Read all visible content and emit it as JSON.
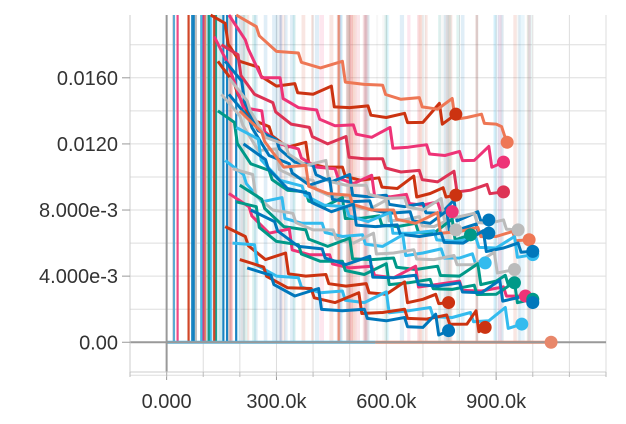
{
  "chart_data": {
    "type": "line",
    "title": "",
    "xlabel": "",
    "ylabel": "",
    "xlim": [
      -100000,
      1200000
    ],
    "ylim": [
      -0.0018,
      0.0198
    ],
    "grid": true,
    "legend": "none",
    "x_ticks": [
      {
        "value": 0,
        "label": "0.000"
      },
      {
        "value": 300000,
        "label": "300.0k"
      },
      {
        "value": 600000,
        "label": "600.0k"
      },
      {
        "value": 900000,
        "label": "900.0k"
      }
    ],
    "y_ticks": [
      {
        "value": 0,
        "label": "0.00"
      },
      {
        "value": 0.004,
        "label": "4.000e-3"
      },
      {
        "value": 0.008,
        "label": "8.000e-3"
      },
      {
        "value": 0.012,
        "label": "0.0120"
      },
      {
        "value": 0.016,
        "label": "0.0160"
      }
    ],
    "colors": {
      "axis": "#999999",
      "grid": "#dddddd",
      "baseline_run": "#4db6e6",
      "baseline_run_2": "#e8876a"
    },
    "series": [
      {
        "color": "#cc3311",
        "points": [
          [
            120000,
            0.0198
          ],
          [
            200000,
            0.017
          ],
          [
            300000,
            0.0155
          ],
          [
            400000,
            0.015
          ],
          [
            500000,
            0.0142
          ],
          [
            600000,
            0.0136
          ],
          [
            700000,
            0.0133
          ],
          [
            790000,
            0.0138
          ]
        ]
      },
      {
        "color": "#ee7755",
        "points": [
          [
            190000,
            0.0198
          ],
          [
            300000,
            0.0176
          ],
          [
            420000,
            0.0166
          ],
          [
            540000,
            0.0156
          ],
          [
            640000,
            0.0147
          ],
          [
            740000,
            0.0141
          ],
          [
            820000,
            0.0136
          ],
          [
            900000,
            0.0132
          ],
          [
            930000,
            0.0121
          ]
        ]
      },
      {
        "color": "#ee3377",
        "points": [
          [
            170000,
            0.0198
          ],
          [
            260000,
            0.016
          ],
          [
            360000,
            0.0142
          ],
          [
            460000,
            0.0131
          ],
          [
            560000,
            0.0124
          ],
          [
            660000,
            0.0118
          ],
          [
            760000,
            0.0113
          ],
          [
            840000,
            0.011
          ],
          [
            920000,
            0.0109
          ]
        ]
      },
      {
        "color": "#dd3355",
        "points": [
          [
            150000,
            0.018
          ],
          [
            240000,
            0.015
          ],
          [
            340000,
            0.0132
          ],
          [
            440000,
            0.012
          ],
          [
            540000,
            0.0111
          ],
          [
            640000,
            0.0103
          ],
          [
            740000,
            0.0097
          ],
          [
            830000,
            0.0092
          ],
          [
            920000,
            0.0091
          ]
        ]
      },
      {
        "color": "#cc3311",
        "points": [
          [
            140000,
            0.017
          ],
          [
            230000,
            0.0135
          ],
          [
            330000,
            0.0118
          ],
          [
            430000,
            0.0106
          ],
          [
            530000,
            0.0098
          ],
          [
            630000,
            0.0093
          ],
          [
            720000,
            0.009
          ],
          [
            790000,
            0.0089
          ]
        ]
      },
      {
        "color": "#ee3377",
        "points": [
          [
            130000,
            0.0185
          ],
          [
            210000,
            0.0142
          ],
          [
            310000,
            0.012
          ],
          [
            410000,
            0.0106
          ],
          [
            510000,
            0.0096
          ],
          [
            610000,
            0.0088
          ],
          [
            700000,
            0.0083
          ],
          [
            780000,
            0.0079
          ]
        ]
      },
      {
        "color": "#0077bb",
        "points": [
          [
            160000,
            0.017
          ],
          [
            250000,
            0.0128
          ],
          [
            350000,
            0.0109
          ],
          [
            450000,
            0.0097
          ],
          [
            550000,
            0.0088
          ],
          [
            650000,
            0.0082
          ],
          [
            750000,
            0.0078
          ],
          [
            820000,
            0.0076
          ],
          [
            880000,
            0.0074
          ]
        ]
      },
      {
        "color": "#bbbbbb",
        "points": [
          [
            170000,
            0.016
          ],
          [
            270000,
            0.0124
          ],
          [
            380000,
            0.0107
          ],
          [
            490000,
            0.0095
          ],
          [
            600000,
            0.0087
          ],
          [
            700000,
            0.008
          ],
          [
            800000,
            0.0076
          ],
          [
            880000,
            0.0072
          ],
          [
            960000,
            0.0068
          ]
        ]
      },
      {
        "color": "#bbbbbb",
        "points": [
          [
            150000,
            0.015
          ],
          [
            250000,
            0.0116
          ],
          [
            350000,
            0.01
          ],
          [
            450000,
            0.0088
          ],
          [
            550000,
            0.008
          ],
          [
            650000,
            0.0074
          ],
          [
            730000,
            0.007
          ],
          [
            790000,
            0.0068
          ]
        ]
      },
      {
        "color": "#009988",
        "points": [
          [
            140000,
            0.014
          ],
          [
            230000,
            0.0108
          ],
          [
            330000,
            0.0092
          ],
          [
            430000,
            0.0082
          ],
          [
            530000,
            0.0075
          ],
          [
            630000,
            0.007
          ],
          [
            730000,
            0.0066
          ],
          [
            830000,
            0.0065
          ]
        ]
      },
      {
        "color": "#0077bb",
        "points": [
          [
            170000,
            0.015
          ],
          [
            280000,
            0.0113
          ],
          [
            390000,
            0.0095
          ],
          [
            500000,
            0.0085
          ],
          [
            610000,
            0.0078
          ],
          [
            720000,
            0.0072
          ],
          [
            810000,
            0.0069
          ],
          [
            880000,
            0.0066
          ]
        ]
      },
      {
        "color": "#ee7755",
        "points": [
          [
            200000,
            0.014
          ],
          [
            320000,
            0.0106
          ],
          [
            440000,
            0.009
          ],
          [
            560000,
            0.008
          ],
          [
            680000,
            0.0072
          ],
          [
            800000,
            0.0067
          ],
          [
            900000,
            0.0064
          ],
          [
            990000,
            0.0062
          ]
        ]
      },
      {
        "color": "#33bbee",
        "points": [
          [
            190000,
            0.013
          ],
          [
            310000,
            0.0098
          ],
          [
            430000,
            0.0083
          ],
          [
            550000,
            0.0073
          ],
          [
            670000,
            0.0066
          ],
          [
            790000,
            0.0061
          ],
          [
            900000,
            0.0057
          ],
          [
            1000000,
            0.0053
          ]
        ]
      },
      {
        "color": "#0077bb",
        "points": [
          [
            210000,
            0.012
          ],
          [
            330000,
            0.0093
          ],
          [
            450000,
            0.0079
          ],
          [
            570000,
            0.007
          ],
          [
            690000,
            0.0064
          ],
          [
            810000,
            0.006
          ],
          [
            920000,
            0.0057
          ],
          [
            1000000,
            0.0055
          ]
        ]
      },
      {
        "color": "#33bbee",
        "points": [
          [
            160000,
            0.011
          ],
          [
            260000,
            0.0085
          ],
          [
            370000,
            0.0072
          ],
          [
            480000,
            0.0064
          ],
          [
            590000,
            0.0058
          ],
          [
            700000,
            0.0054
          ],
          [
            800000,
            0.0051
          ],
          [
            870000,
            0.0048
          ]
        ]
      },
      {
        "color": "#bbbbbb",
        "points": [
          [
            180000,
            0.0105
          ],
          [
            290000,
            0.008
          ],
          [
            400000,
            0.0068
          ],
          [
            510000,
            0.006
          ],
          [
            620000,
            0.0054
          ],
          [
            730000,
            0.005
          ],
          [
            840000,
            0.0047
          ],
          [
            950000,
            0.0044
          ]
        ]
      },
      {
        "color": "#009988",
        "points": [
          [
            200000,
            0.0095
          ],
          [
            320000,
            0.007
          ],
          [
            440000,
            0.0058
          ],
          [
            560000,
            0.005
          ],
          [
            680000,
            0.0044
          ],
          [
            800000,
            0.004
          ],
          [
            900000,
            0.0037
          ],
          [
            950000,
            0.0036
          ]
        ]
      },
      {
        "color": "#ee3377",
        "points": [
          [
            170000,
            0.009
          ],
          [
            280000,
            0.0066
          ],
          [
            390000,
            0.0053
          ],
          [
            500000,
            0.0045
          ],
          [
            620000,
            0.0039
          ],
          [
            740000,
            0.0035
          ],
          [
            860000,
            0.0031
          ],
          [
            980000,
            0.0028
          ]
        ]
      },
      {
        "color": "#009988",
        "points": [
          [
            190000,
            0.0085
          ],
          [
            300000,
            0.0061
          ],
          [
            420000,
            0.0049
          ],
          [
            540000,
            0.0041
          ],
          [
            660000,
            0.0036
          ],
          [
            780000,
            0.0032
          ],
          [
            900000,
            0.0029
          ],
          [
            1000000,
            0.0026
          ]
        ]
      },
      {
        "color": "#0077bb",
        "points": [
          [
            230000,
            0.008
          ],
          [
            360000,
            0.0058
          ],
          [
            490000,
            0.0047
          ],
          [
            620000,
            0.0039
          ],
          [
            740000,
            0.0034
          ],
          [
            860000,
            0.003
          ],
          [
            960000,
            0.0027
          ],
          [
            1000000,
            0.0024
          ]
        ]
      },
      {
        "color": "#cc3311",
        "points": [
          [
            160000,
            0.007
          ],
          [
            270000,
            0.005
          ],
          [
            380000,
            0.004
          ],
          [
            490000,
            0.0034
          ],
          [
            600000,
            0.0029
          ],
          [
            700000,
            0.0026
          ],
          [
            770000,
            0.0024
          ]
        ]
      },
      {
        "color": "#33bbee",
        "points": [
          [
            180000,
            0.006
          ],
          [
            300000,
            0.004
          ],
          [
            420000,
            0.003
          ],
          [
            540000,
            0.0024
          ],
          [
            660000,
            0.0019
          ],
          [
            780000,
            0.0015
          ],
          [
            880000,
            0.0013
          ],
          [
            970000,
            0.0011
          ]
        ]
      },
      {
        "color": "#cc3311",
        "points": [
          [
            200000,
            0.005
          ],
          [
            330000,
            0.0033
          ],
          [
            460000,
            0.0024
          ],
          [
            590000,
            0.0018
          ],
          [
            710000,
            0.0014
          ],
          [
            820000,
            0.0011
          ],
          [
            870000,
            0.0009
          ]
        ]
      },
      {
        "color": "#0077bb",
        "points": [
          [
            220000,
            0.0045
          ],
          [
            350000,
            0.0028
          ],
          [
            480000,
            0.0019
          ],
          [
            600000,
            0.0013
          ],
          [
            700000,
            0.0009
          ],
          [
            770000,
            0.0007
          ]
        ]
      },
      {
        "color": "#4db6e6",
        "points": [
          [
            0,
            0.0
          ],
          [
            570000,
            0.0
          ]
        ]
      },
      {
        "color": "#e8876a",
        "points": [
          [
            570000,
            0.0
          ],
          [
            1000000,
            0.0
          ],
          [
            1050000,
            0.0
          ]
        ]
      }
    ]
  }
}
